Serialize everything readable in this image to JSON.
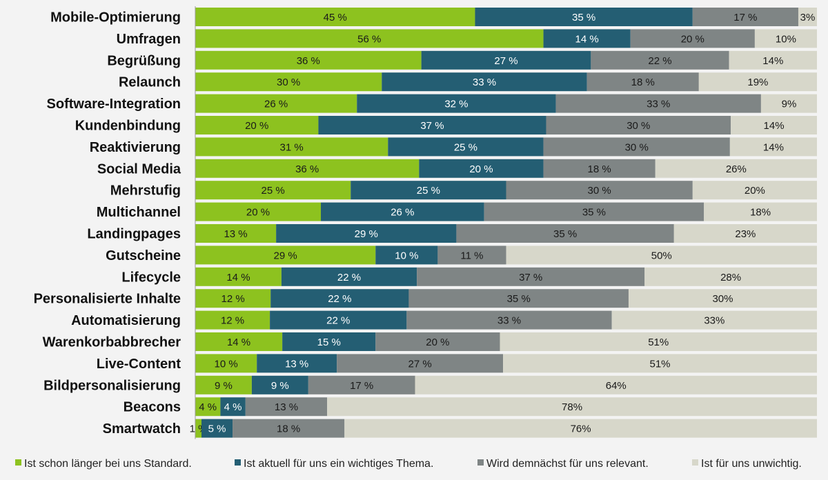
{
  "chart_data": {
    "type": "bar",
    "orientation": "horizontal",
    "stacked": true,
    "xlim": [
      0,
      100
    ],
    "unit": "%",
    "legend_position": "bottom",
    "grid": false,
    "categories": [
      "Mobile-Optimierung",
      "Umfragen",
      "Begrüßung",
      "Relaunch",
      "Software-Integration",
      "Kundenbindung",
      "Reaktivierung",
      "Social Media",
      "Mehrstufig",
      "Multichannel",
      "Landingpages",
      "Gutscheine",
      "Lifecycle",
      "Personalisierte Inhalte",
      "Automatisierung",
      "Warenkorbabbrecher",
      "Live-Content",
      "Bildpersonalisierung",
      "Beacons",
      "Smartwatch"
    ],
    "series": [
      {
        "name": "Ist schon länger bei uns Standard.",
        "color": "#8dc21f",
        "text_color": "#1a1a1a",
        "label_suffix": " %",
        "values": [
          45,
          56,
          36,
          30,
          26,
          20,
          31,
          36,
          25,
          20,
          13,
          29,
          14,
          12,
          12,
          14,
          10,
          9,
          4,
          1
        ]
      },
      {
        "name": "Ist aktuell für uns ein wichtiges Thema.",
        "color": "#245e73",
        "text_color": "#ffffff",
        "label_suffix": " %",
        "values": [
          35,
          14,
          27,
          33,
          32,
          37,
          25,
          20,
          25,
          26,
          29,
          10,
          22,
          22,
          22,
          15,
          13,
          9,
          4,
          5
        ]
      },
      {
        "name": "Wird demnächst für uns relevant.",
        "color": "#7f8585",
        "text_color": "#1a1a1a",
        "label_suffix": " %",
        "values": [
          17,
          20,
          22,
          18,
          33,
          30,
          30,
          18,
          30,
          35,
          35,
          11,
          37,
          35,
          33,
          20,
          27,
          17,
          13,
          18
        ]
      },
      {
        "name": "Ist für uns unwichtig.",
        "color": "#d7d7ca",
        "text_color": "#1a1a1a",
        "label_suffix": "%",
        "values": [
          3,
          10,
          14,
          19,
          9,
          14,
          14,
          26,
          20,
          18,
          23,
          50,
          28,
          30,
          33,
          51,
          51,
          64,
          78,
          76
        ]
      }
    ]
  }
}
